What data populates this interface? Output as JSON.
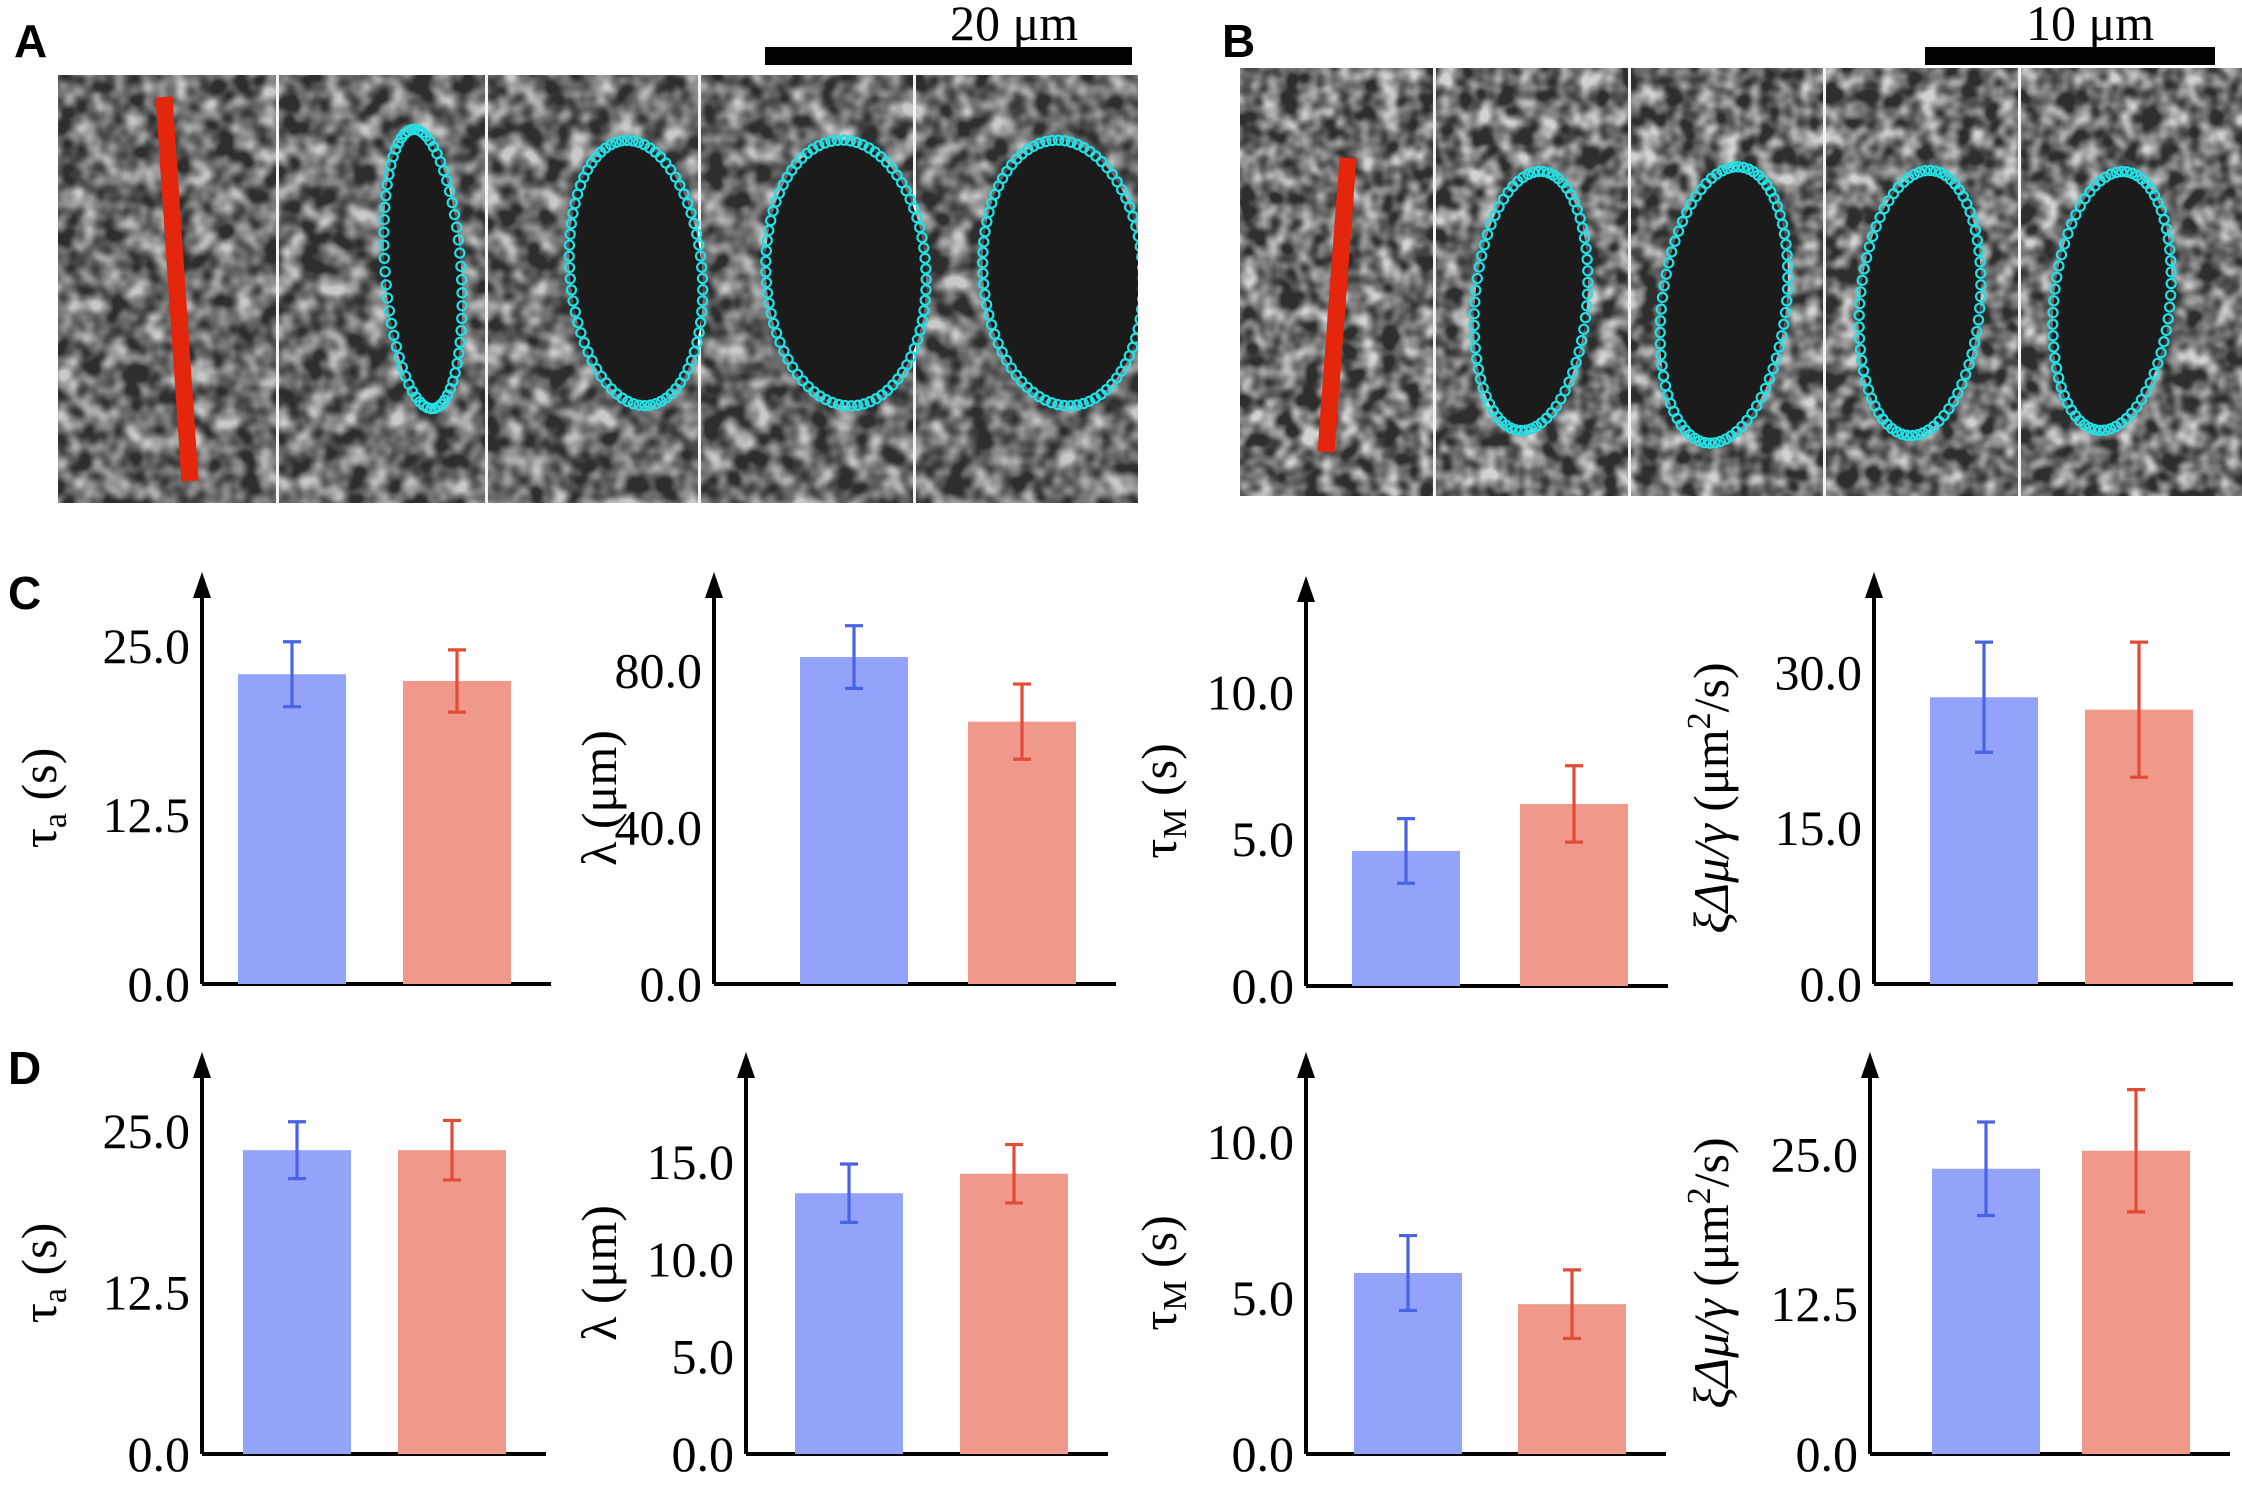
{
  "panels": {
    "a": "A",
    "b": "B",
    "c": "C",
    "d": "D"
  },
  "scalebars": {
    "a": "20 μm",
    "b": "10 μm"
  },
  "colors": {
    "blue_bar": "#92a3f9",
    "red_bar": "#f0998a",
    "blue_err": "#4a63e3",
    "red_err": "#e24b35",
    "cut_line": "#e3260c",
    "contour": "#22e0e6"
  },
  "chart_data": [
    {
      "type": "bar",
      "panel": "C",
      "categories": [
        "",
        ""
      ],
      "values": [
        22.9,
        22.4
      ],
      "errors": [
        2.4,
        2.3
      ],
      "ylim": [
        0,
        27.5
      ],
      "yticks": [
        "0.0",
        "12.5",
        "25.0"
      ],
      "ytick_values": [
        0,
        12.5,
        25
      ],
      "ylabel": {
        "sym": "τ",
        "sub": "a",
        "unit": " (s)"
      }
    },
    {
      "type": "bar",
      "panel": "C",
      "categories": [
        "",
        ""
      ],
      "values": [
        83.5,
        67.0
      ],
      "errors": [
        8.0,
        9.6
      ],
      "ylim": [
        0,
        95
      ],
      "yticks": [
        "0.0",
        "40.0",
        "80.0"
      ],
      "ytick_values": [
        0,
        40,
        80
      ],
      "ylabel": {
        "sym": "λ",
        "sub": "",
        "unit": " (μm)"
      }
    },
    {
      "type": "bar",
      "panel": "C",
      "categories": [
        "",
        ""
      ],
      "values": [
        4.6,
        6.2
      ],
      "errors": [
        1.1,
        1.3
      ],
      "ylim": [
        0,
        12.6
      ],
      "yticks": [
        "0.0",
        "5.0",
        "10.0"
      ],
      "ytick_values": [
        0,
        5,
        10
      ],
      "ylabel": {
        "sym": "τ",
        "sub": "M",
        "unit": " (s)"
      }
    },
    {
      "type": "bar",
      "panel": "C",
      "categories": [
        "",
        ""
      ],
      "values": [
        27.6,
        26.4
      ],
      "errors": [
        5.3,
        6.5
      ],
      "ylim": [
        0,
        35.8
      ],
      "yticks": [
        "0.0",
        "15.0",
        "30.0"
      ],
      "ytick_values": [
        0,
        15,
        30
      ],
      "ylabel": {
        "sym": "ξΔμ/γ",
        "sub": "",
        "unit": " (μm",
        "sup": "2",
        "unit2": "/s)"
      }
    },
    {
      "type": "bar",
      "panel": "D",
      "categories": [
        "",
        ""
      ],
      "values": [
        23.5,
        23.5
      ],
      "errors": [
        2.2,
        2.3
      ],
      "ylim": [
        0,
        28
      ],
      "yticks": [
        "0.0",
        "12.5",
        "25.0"
      ],
      "ytick_values": [
        0,
        12.5,
        25
      ],
      "ylabel": {
        "sym": "τ",
        "sub": "a",
        "unit": " (s)"
      }
    },
    {
      "type": "bar",
      "panel": "D",
      "categories": [
        "",
        ""
      ],
      "values": [
        13.4,
        14.4
      ],
      "errors": [
        1.5,
        1.5
      ],
      "ylim": [
        0,
        18.6
      ],
      "yticks": [
        "0.0",
        "5.0",
        "10.0",
        "15.0"
      ],
      "ytick_values": [
        0,
        5,
        10,
        15
      ],
      "ylabel": {
        "sym": "λ",
        "sub": "",
        "unit": " (μm)"
      }
    },
    {
      "type": "bar",
      "panel": "D",
      "categories": [
        "",
        ""
      ],
      "values": [
        5.8,
        4.8
      ],
      "errors": [
        1.2,
        1.1
      ],
      "ylim": [
        0,
        11.6
      ],
      "yticks": [
        "0.0",
        "5.0",
        "10.0"
      ],
      "ytick_values": [
        0,
        5,
        10
      ],
      "ylabel": {
        "sym": "τ",
        "sub": "M",
        "unit": " (s)"
      }
    },
    {
      "type": "bar",
      "panel": "D",
      "categories": [
        "",
        ""
      ],
      "values": [
        23.8,
        25.3
      ],
      "errors": [
        3.9,
        5.1
      ],
      "ylim": [
        0,
        30.2
      ],
      "yticks": [
        "0.0",
        "12.5",
        "25.0"
      ],
      "ytick_values": [
        0,
        12.5,
        25
      ],
      "ylabel": {
        "sym": "ξΔμ/γ",
        "sub": "",
        "unit": " (μm",
        "sup": "2",
        "unit2": "/s)"
      }
    }
  ]
}
